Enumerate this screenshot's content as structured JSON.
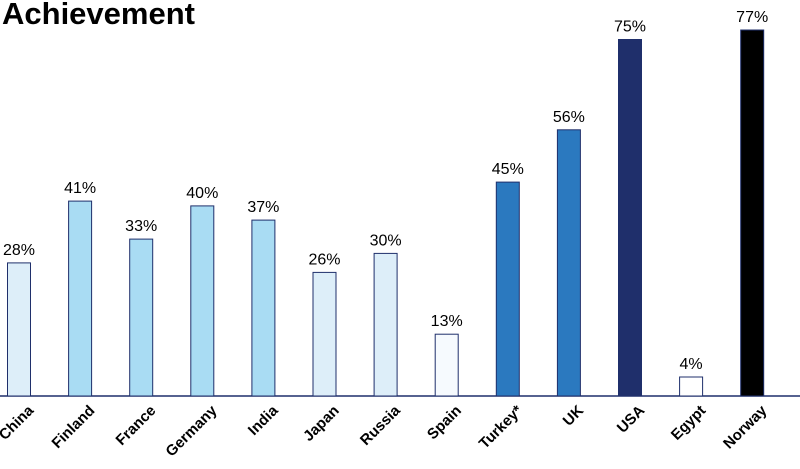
{
  "chart_data": {
    "type": "bar",
    "title": "Achievement",
    "categories": [
      "China",
      "Finland",
      "France",
      "Germany",
      "India",
      "Japan",
      "Russia",
      "Spain",
      "Turkey*",
      "UK",
      "USA",
      "Egypt",
      "Norway"
    ],
    "values": [
      28,
      41,
      33,
      40,
      37,
      26,
      30,
      13,
      45,
      56,
      75,
      4,
      77
    ],
    "value_labels": [
      "28%",
      "41%",
      "33%",
      "40%",
      "37%",
      "26%",
      "30%",
      "13%",
      "45%",
      "56%",
      "75%",
      "4%",
      "77%"
    ],
    "bar_colors": [
      "#ddeef9",
      "#a9dcf3",
      "#a9dcf3",
      "#a9dcf3",
      "#a9dcf3",
      "#ddeef9",
      "#ddeef9",
      "#f6fafe",
      "#2b79bf",
      "#2b79bf",
      "#1f2f6b",
      "#ffffff",
      "#000000"
    ],
    "ylim": [
      0,
      80
    ],
    "grid": false,
    "legend": "none"
  }
}
